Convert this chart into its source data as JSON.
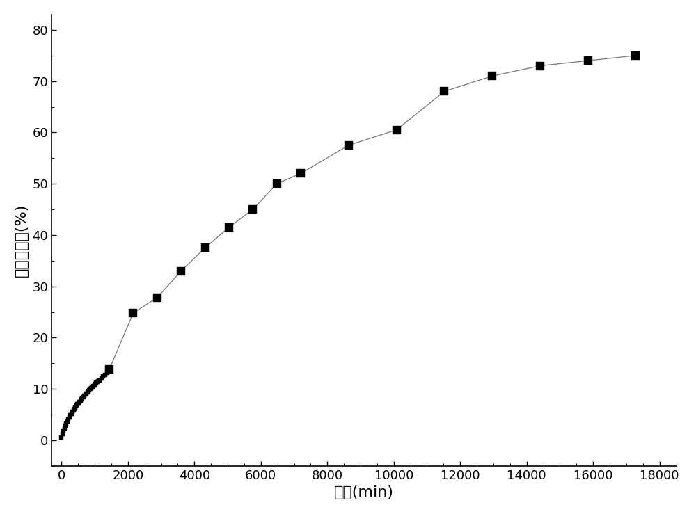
{
  "dense_x": [
    0,
    30,
    60,
    90,
    120,
    150,
    180,
    210,
    240,
    270,
    300,
    330,
    360,
    390,
    420,
    450,
    480,
    510,
    540,
    570,
    600,
    630,
    660,
    690,
    720,
    750,
    780,
    810,
    840,
    870,
    900,
    930,
    960,
    990,
    1020,
    1050,
    1080,
    1110,
    1140,
    1200,
    1260,
    1320,
    1380,
    1440
  ],
  "dense_y": [
    0.5,
    1.2,
    1.8,
    2.3,
    2.8,
    3.2,
    3.6,
    4.0,
    4.4,
    4.8,
    5.1,
    5.5,
    5.8,
    6.1,
    6.4,
    6.7,
    7.0,
    7.2,
    7.5,
    7.7,
    8.0,
    8.2,
    8.4,
    8.7,
    8.9,
    9.1,
    9.3,
    9.5,
    9.7,
    10.0,
    10.1,
    10.3,
    10.5,
    10.7,
    11.0,
    11.2,
    11.4,
    11.5,
    11.7,
    12.0,
    12.4,
    12.7,
    13.2,
    13.8
  ],
  "sparse_x": [
    1440,
    2160,
    2880,
    3600,
    4320,
    5040,
    5760,
    6480,
    7200,
    8640,
    10080,
    11520,
    12960,
    14400,
    15840,
    17280
  ],
  "sparse_y": [
    13.8,
    24.8,
    27.8,
    33.0,
    37.5,
    41.5,
    45.0,
    50.0,
    52.0,
    57.5,
    60.5,
    68.0,
    71.0,
    73.0,
    74.0,
    75.0
  ],
  "xlabel": "时间(min)",
  "ylabel": "药物释放量(%)",
  "xlim": [
    -300,
    18500
  ],
  "ylim": [
    -5,
    83
  ],
  "xticks": [
    0,
    2000,
    4000,
    6000,
    8000,
    10000,
    12000,
    14000,
    16000,
    18000
  ],
  "yticks": [
    0,
    10,
    20,
    30,
    40,
    50,
    60,
    70,
    80
  ],
  "dense_marker_size": 4,
  "sparse_marker_size": 8,
  "line_color": "#777777",
  "marker_color": "#000000",
  "background_color": "#ffffff",
  "font_size_label": 16,
  "font_size_tick": 13
}
